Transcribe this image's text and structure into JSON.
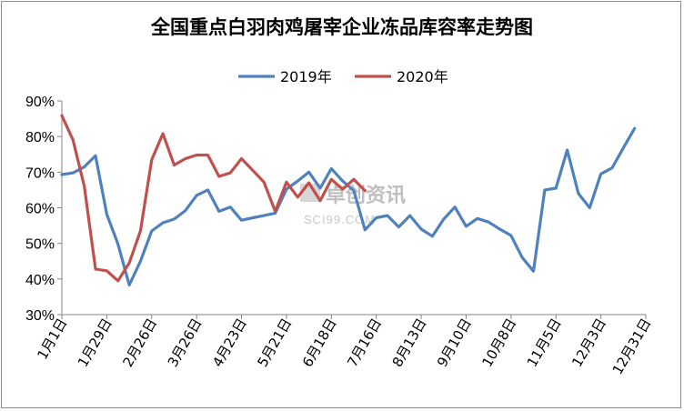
{
  "chart_data": {
    "type": "line",
    "title": "全国重点白羽肉鸡屠宰企业冻品库容率走势图",
    "xlabel": "",
    "ylabel": "",
    "ylim": [
      30,
      90
    ],
    "yticks": [
      "30%",
      "40%",
      "50%",
      "60%",
      "70%",
      "80%",
      "90%"
    ],
    "yunit": "%",
    "xtick_labels": [
      "1月1日",
      "1月29日",
      "2月26日",
      "3月26日",
      "4月23日",
      "5月21日",
      "6月18日",
      "7月16日",
      "8月13日",
      "9月10日",
      "10月8日",
      "11月5日",
      "12月3日",
      "12月31日"
    ],
    "legend_position": "top",
    "grid": false,
    "series": [
      {
        "name": "2019年",
        "color": "#4f81bd",
        "values": [
          69.3,
          69.8,
          71.5,
          74.6,
          58.2,
          49.8,
          38.3,
          45.0,
          53.5,
          55.8,
          56.8,
          59.2,
          63.5,
          65.0,
          59.0,
          60.2,
          56.5,
          57.2,
          57.8,
          58.5,
          65.2,
          67.5,
          70.0,
          65.5,
          71.0,
          67.5,
          64.8,
          53.8,
          57.2,
          57.8,
          54.6,
          57.8,
          54.0,
          52.0,
          56.8,
          60.2,
          54.8,
          57.0,
          56.0,
          54.0,
          52.2,
          46.0,
          42.2,
          65.0,
          65.5,
          76.2,
          64.0,
          60.0,
          69.5,
          71.2,
          76.8,
          82.3
        ]
      },
      {
        "name": "2020年",
        "color": "#c0504d",
        "values": [
          85.9,
          79.0,
          66.0,
          42.8,
          42.3,
          39.5,
          44.5,
          53.5,
          73.5,
          80.8,
          72.0,
          73.8,
          74.8,
          74.8,
          68.8,
          69.8,
          73.8,
          70.5,
          67.2,
          59.0,
          67.2,
          63.0,
          67.0,
          62.0,
          68.0,
          65.2,
          68.0,
          64.8
        ]
      }
    ]
  },
  "watermark": {
    "main": "卓创资讯",
    "sub": "SCI99.COM"
  }
}
